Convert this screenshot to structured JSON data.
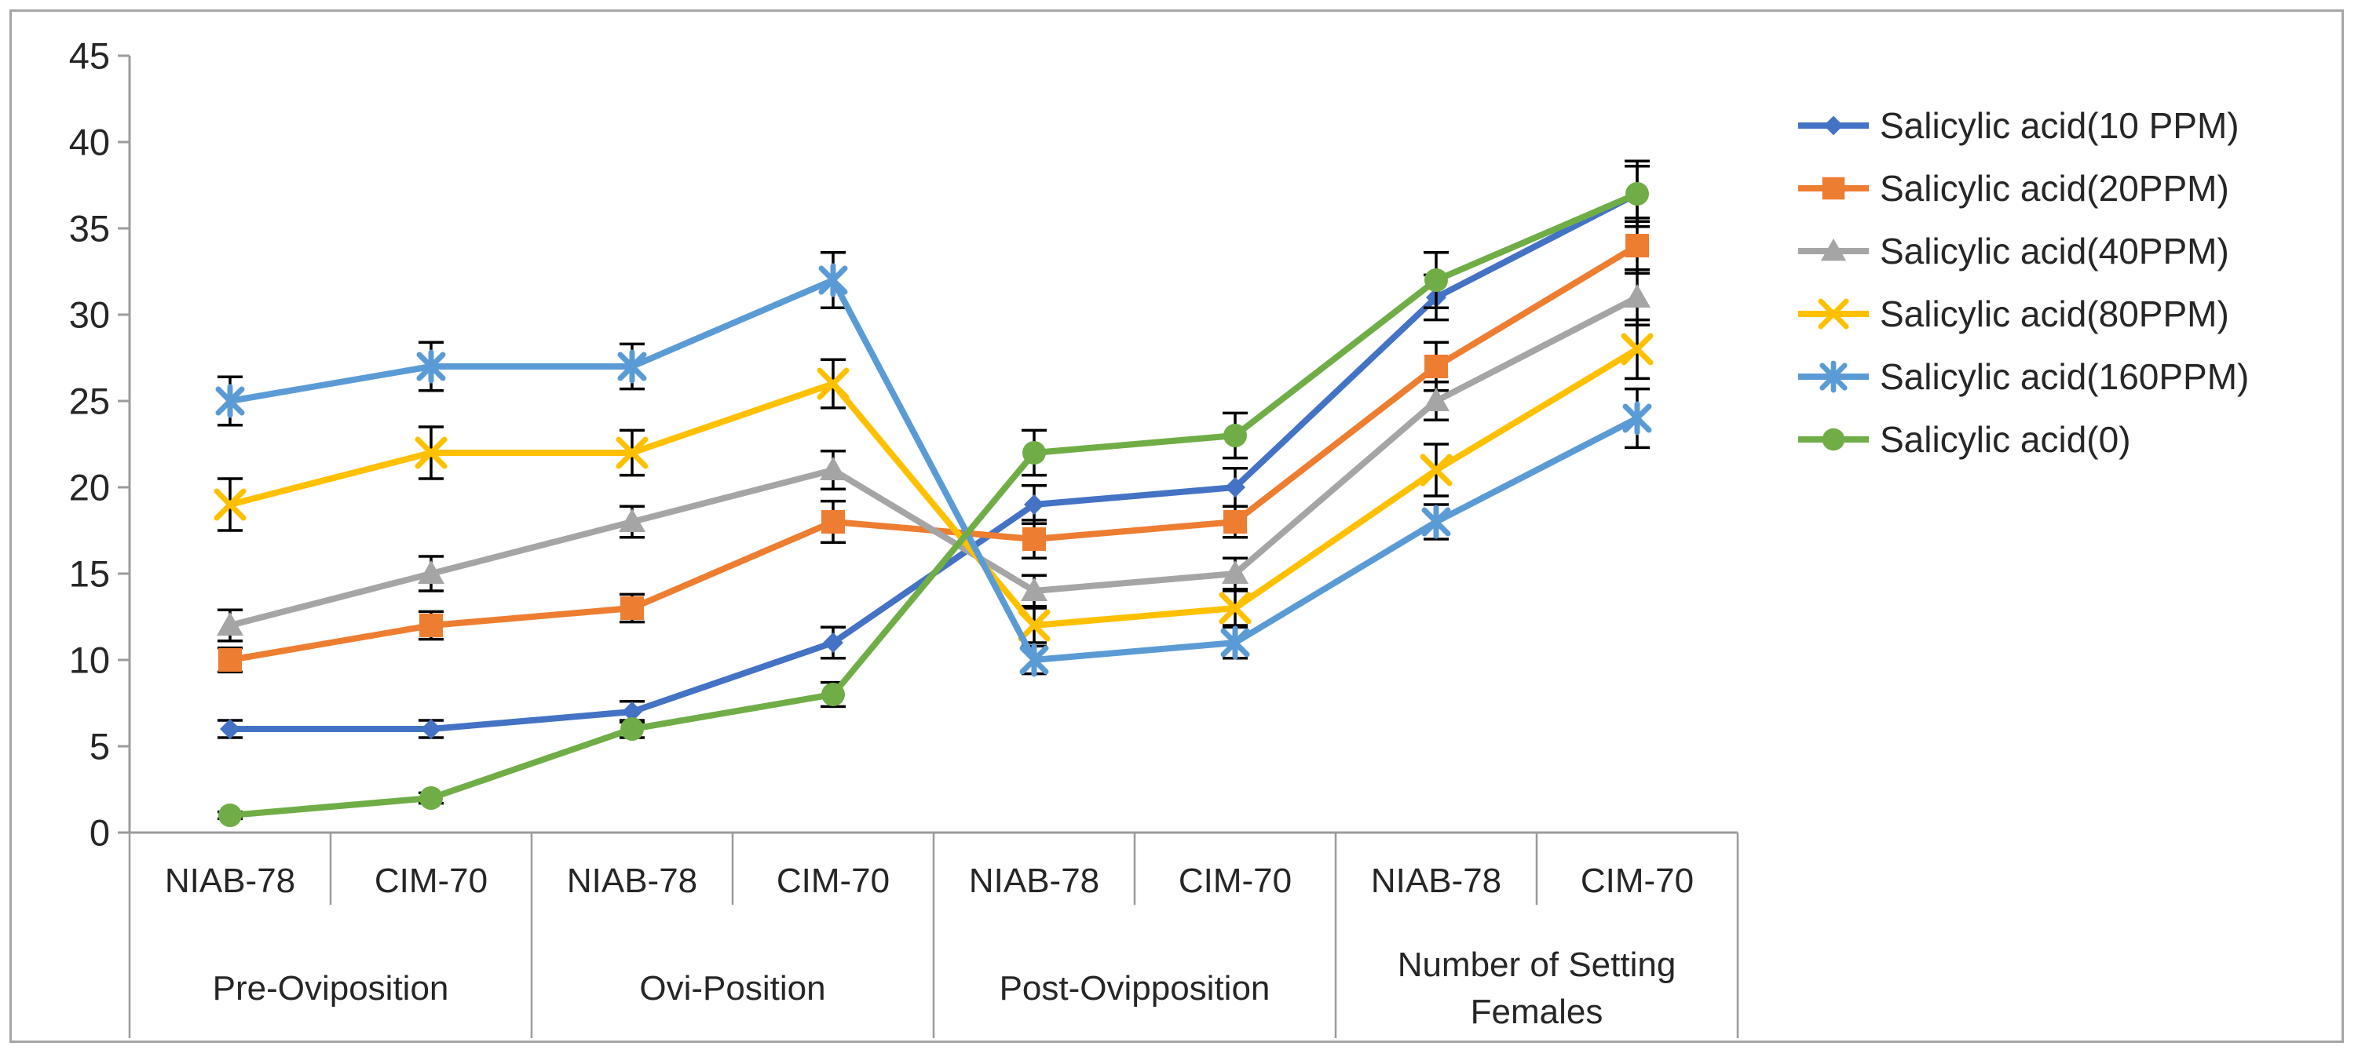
{
  "chart": {
    "background": "#ffffff",
    "border_color": "#a6a6a6",
    "axis_color": "#9b9b9b",
    "text_color": "#262626",
    "error_bar_color": "#000000"
  },
  "chart_data": {
    "type": "line",
    "title": "",
    "xlabel": "",
    "ylabel": "",
    "ylim": [
      0,
      45
    ],
    "y_step": 5,
    "grid": false,
    "legend_position": "right",
    "y_axis": {
      "tick_labels": [
        "0",
        "5",
        "10",
        "15",
        "20",
        "25",
        "30",
        "35",
        "40",
        "45"
      ]
    },
    "categories": [
      "NIAB-78",
      "CIM-70",
      "NIAB-78",
      "CIM-70",
      "NIAB-78",
      "CIM-70",
      "NIAB-78",
      "CIM-70"
    ],
    "groups": [
      {
        "label": "Pre-Oviposition"
      },
      {
        "label": "Ovi-Position"
      },
      {
        "label": "Post-Ovipposition"
      },
      {
        "label": "Number of Setting Females"
      }
    ],
    "series": [
      {
        "name": "Salicylic acid(10 PPM)",
        "color": "#4472C4",
        "marker": "diamond",
        "values": [
          6,
          6,
          7,
          11,
          19,
          20,
          31,
          37
        ],
        "errors": [
          0.5,
          0.5,
          0.6,
          0.9,
          1.1,
          1.1,
          1.3,
          1.6
        ]
      },
      {
        "name": "Salicylic acid(20PPM)",
        "color": "#ED7D31",
        "marker": "square",
        "values": [
          10,
          12,
          13,
          18,
          17,
          18,
          27,
          34
        ],
        "errors": [
          0.7,
          0.8,
          0.8,
          1.2,
          1.1,
          0.9,
          1.4,
          1.6
        ]
      },
      {
        "name": "Salicylic acid(40PPM)",
        "color": "#A5A5A5",
        "marker": "triangle",
        "values": [
          12,
          15,
          18,
          21,
          14,
          15,
          25,
          31
        ],
        "errors": [
          0.9,
          1.0,
          0.9,
          1.1,
          0.9,
          0.9,
          1.1,
          1.6
        ]
      },
      {
        "name": "Salicylic acid(80PPM)",
        "color": "#FFC000",
        "marker": "x",
        "values": [
          19,
          22,
          22,
          26,
          12,
          13,
          21,
          28
        ],
        "errors": [
          1.5,
          1.5,
          1.3,
          1.4,
          1.0,
          1.0,
          1.5,
          1.7
        ]
      },
      {
        "name": "Salicylic acid(160PPM)",
        "color": "#5B9BD5",
        "marker": "asterisk",
        "values": [
          25,
          27,
          27,
          32,
          10,
          11,
          18,
          24
        ],
        "errors": [
          1.4,
          1.4,
          1.3,
          1.6,
          0.8,
          0.9,
          1.0,
          1.7
        ]
      },
      {
        "name": "Salicylic acid(0)",
        "color": "#70AD47",
        "marker": "circle",
        "values": [
          1,
          2,
          6,
          8,
          22,
          23,
          32,
          37
        ],
        "errors": [
          0.2,
          0.3,
          0.5,
          0.7,
          1.3,
          1.3,
          1.6,
          1.9
        ]
      }
    ]
  }
}
